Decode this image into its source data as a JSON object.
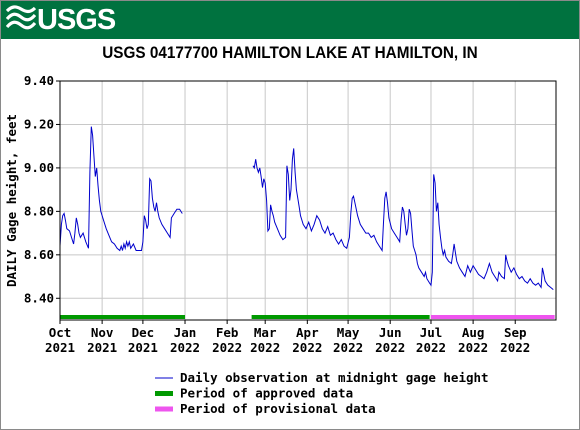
{
  "header": {
    "logo_text": "USGS",
    "logo_icon": "usgs-wave-icon",
    "banner_color": "#00723f"
  },
  "chart_data": {
    "type": "line",
    "title": "USGS 04177700 HAMILTON LAKE AT HAMILTON, IN",
    "ylabel": "DAILY Gage height, feet",
    "xlabel": "",
    "ylim": [
      8.3,
      9.4
    ],
    "yticks": [
      "8.40",
      "8.60",
      "8.80",
      "9.00",
      "9.20",
      "9.40"
    ],
    "xlim": [
      "2021-10-01",
      "2022-09-30"
    ],
    "xticks": [
      {
        "date": "2021-10-01",
        "line1": "Oct",
        "line2": "2021"
      },
      {
        "date": "2021-11-01",
        "line1": "Nov",
        "line2": "2021"
      },
      {
        "date": "2021-12-01",
        "line1": "Dec",
        "line2": "2021"
      },
      {
        "date": "2022-01-01",
        "line1": "Jan",
        "line2": "2022"
      },
      {
        "date": "2022-02-01",
        "line1": "Feb",
        "line2": "2022"
      },
      {
        "date": "2022-03-01",
        "line1": "Mar",
        "line2": "2022"
      },
      {
        "date": "2022-04-01",
        "line1": "Apr",
        "line2": "2022"
      },
      {
        "date": "2022-05-01",
        "line1": "May",
        "line2": "2022"
      },
      {
        "date": "2022-06-01",
        "line1": "Jun",
        "line2": "2022"
      },
      {
        "date": "2022-07-01",
        "line1": "Jul",
        "line2": "2022"
      },
      {
        "date": "2022-08-01",
        "line1": "Aug",
        "line2": "2022"
      },
      {
        "date": "2022-09-01",
        "line1": "Sep",
        "line2": "2022"
      }
    ],
    "grid": true,
    "legend_position": "bottom",
    "series": [
      {
        "name": "Daily observation at midnight gage height",
        "color": "#0000cc",
        "segments": [
          [
            [
              "2021-10-01",
              8.64
            ],
            [
              "2021-10-02",
              8.74
            ],
            [
              "2021-10-03",
              8.78
            ],
            [
              "2021-10-04",
              8.79
            ],
            [
              "2021-10-05",
              8.76
            ],
            [
              "2021-10-06",
              8.72
            ],
            [
              "2021-10-08",
              8.71
            ],
            [
              "2021-10-10",
              8.67
            ],
            [
              "2021-10-11",
              8.65
            ],
            [
              "2021-10-12",
              8.7
            ],
            [
              "2021-10-13",
              8.77
            ],
            [
              "2021-10-14",
              8.74
            ],
            [
              "2021-10-15",
              8.7
            ],
            [
              "2021-10-16",
              8.68
            ],
            [
              "2021-10-18",
              8.7
            ],
            [
              "2021-10-20",
              8.66
            ],
            [
              "2021-10-22",
              8.63
            ],
            [
              "2021-10-23",
              8.98
            ],
            [
              "2021-10-24",
              9.19
            ],
            [
              "2021-10-25",
              9.15
            ],
            [
              "2021-10-26",
              9.05
            ],
            [
              "2021-10-27",
              8.96
            ],
            [
              "2021-10-28",
              9.0
            ],
            [
              "2021-10-29",
              8.92
            ],
            [
              "2021-10-30",
              8.85
            ],
            [
              "2021-10-31",
              8.8
            ],
            [
              "2021-11-02",
              8.76
            ],
            [
              "2021-11-04",
              8.72
            ],
            [
              "2021-11-06",
              8.69
            ],
            [
              "2021-11-08",
              8.66
            ],
            [
              "2021-11-10",
              8.65
            ],
            [
              "2021-11-12",
              8.63
            ],
            [
              "2021-11-14",
              8.62
            ],
            [
              "2021-11-15",
              8.64
            ],
            [
              "2021-11-16",
              8.62
            ],
            [
              "2021-11-17",
              8.65
            ],
            [
              "2021-11-18",
              8.63
            ],
            [
              "2021-11-19",
              8.66
            ],
            [
              "2021-11-20",
              8.64
            ],
            [
              "2021-11-21",
              8.66
            ],
            [
              "2021-11-22",
              8.63
            ],
            [
              "2021-11-24",
              8.65
            ],
            [
              "2021-11-26",
              8.62
            ],
            [
              "2021-11-28",
              8.62
            ],
            [
              "2021-11-30",
              8.62
            ],
            [
              "2021-12-01",
              8.66
            ],
            [
              "2021-12-02",
              8.78
            ],
            [
              "2021-12-03",
              8.76
            ],
            [
              "2021-12-04",
              8.72
            ],
            [
              "2021-12-05",
              8.74
            ],
            [
              "2021-12-06",
              8.95
            ],
            [
              "2021-12-07",
              8.94
            ],
            [
              "2021-12-08",
              8.86
            ],
            [
              "2021-12-09",
              8.82
            ],
            [
              "2021-12-10",
              8.8
            ],
            [
              "2021-12-11",
              8.84
            ],
            [
              "2021-12-12",
              8.8
            ],
            [
              "2021-12-13",
              8.77
            ],
            [
              "2021-12-15",
              8.74
            ],
            [
              "2021-12-17",
              8.72
            ],
            [
              "2021-12-19",
              8.7
            ],
            [
              "2021-12-21",
              8.68
            ],
            [
              "2021-12-22",
              8.77
            ],
            [
              "2021-12-24",
              8.79
            ],
            [
              "2021-12-26",
              8.81
            ],
            [
              "2021-12-28",
              8.81
            ],
            [
              "2021-12-29",
              8.8
            ],
            [
              "2021-12-30",
              8.79
            ]
          ],
          [
            [
              "2022-02-20",
              9.01
            ],
            [
              "2022-02-21",
              9.0
            ],
            [
              "2022-02-22",
              9.04
            ],
            [
              "2022-02-23",
              9.0
            ],
            [
              "2022-02-24",
              8.98
            ],
            [
              "2022-02-25",
              9.0
            ],
            [
              "2022-02-26",
              8.96
            ],
            [
              "2022-02-27",
              8.91
            ],
            [
              "2022-02-28",
              8.95
            ],
            [
              "2022-03-01",
              8.93
            ],
            [
              "2022-03-02",
              8.85
            ],
            [
              "2022-03-03",
              8.71
            ],
            [
              "2022-03-04",
              8.72
            ],
            [
              "2022-03-05",
              8.83
            ],
            [
              "2022-03-06",
              8.8
            ],
            [
              "2022-03-07",
              8.78
            ],
            [
              "2022-03-08",
              8.75
            ],
            [
              "2022-03-10",
              8.72
            ],
            [
              "2022-03-12",
              8.69
            ],
            [
              "2022-03-14",
              8.67
            ],
            [
              "2022-03-16",
              8.68
            ],
            [
              "2022-03-17",
              9.01
            ],
            [
              "2022-03-18",
              8.97
            ],
            [
              "2022-03-19",
              8.85
            ],
            [
              "2022-03-20",
              8.9
            ],
            [
              "2022-03-21",
              9.04
            ],
            [
              "2022-03-22",
              9.09
            ],
            [
              "2022-03-23",
              8.98
            ],
            [
              "2022-03-24",
              8.9
            ],
            [
              "2022-03-25",
              8.86
            ],
            [
              "2022-03-26",
              8.82
            ],
            [
              "2022-03-27",
              8.78
            ],
            [
              "2022-03-29",
              8.74
            ],
            [
              "2022-03-31",
              8.72
            ],
            [
              "2022-04-02",
              8.75
            ],
            [
              "2022-04-04",
              8.71
            ],
            [
              "2022-04-06",
              8.74
            ],
            [
              "2022-04-08",
              8.78
            ],
            [
              "2022-04-10",
              8.76
            ],
            [
              "2022-04-12",
              8.72
            ],
            [
              "2022-04-14",
              8.7
            ],
            [
              "2022-04-16",
              8.73
            ],
            [
              "2022-04-18",
              8.69
            ],
            [
              "2022-04-20",
              8.7
            ],
            [
              "2022-04-22",
              8.67
            ],
            [
              "2022-04-24",
              8.65
            ],
            [
              "2022-04-26",
              8.67
            ],
            [
              "2022-04-28",
              8.64
            ],
            [
              "2022-04-30",
              8.63
            ],
            [
              "2022-05-02",
              8.68
            ],
            [
              "2022-05-03",
              8.79
            ],
            [
              "2022-05-04",
              8.86
            ],
            [
              "2022-05-05",
              8.87
            ],
            [
              "2022-05-06",
              8.84
            ],
            [
              "2022-05-08",
              8.78
            ],
            [
              "2022-05-10",
              8.74
            ],
            [
              "2022-05-12",
              8.72
            ],
            [
              "2022-05-14",
              8.7
            ],
            [
              "2022-05-16",
              8.7
            ],
            [
              "2022-05-18",
              8.68
            ],
            [
              "2022-05-20",
              8.69
            ],
            [
              "2022-05-22",
              8.66
            ],
            [
              "2022-05-24",
              8.64
            ],
            [
              "2022-05-26",
              8.62
            ],
            [
              "2022-05-27",
              8.74
            ],
            [
              "2022-05-28",
              8.86
            ],
            [
              "2022-05-29",
              8.89
            ],
            [
              "2022-05-30",
              8.84
            ],
            [
              "2022-05-31",
              8.77
            ],
            [
              "2022-06-02",
              8.72
            ],
            [
              "2022-06-04",
              8.7
            ],
            [
              "2022-06-06",
              8.68
            ],
            [
              "2022-06-08",
              8.66
            ],
            [
              "2022-06-09",
              8.76
            ],
            [
              "2022-06-10",
              8.82
            ],
            [
              "2022-06-11",
              8.8
            ],
            [
              "2022-06-12",
              8.74
            ],
            [
              "2022-06-13",
              8.69
            ],
            [
              "2022-06-14",
              8.72
            ],
            [
              "2022-06-15",
              8.81
            ],
            [
              "2022-06-16",
              8.79
            ],
            [
              "2022-06-17",
              8.71
            ],
            [
              "2022-06-18",
              8.64
            ],
            [
              "2022-06-19",
              8.62
            ],
            [
              "2022-06-20",
              8.6
            ],
            [
              "2022-06-21",
              8.56
            ],
            [
              "2022-06-22",
              8.54
            ],
            [
              "2022-06-24",
              8.52
            ],
            [
              "2022-06-26",
              8.5
            ],
            [
              "2022-06-27",
              8.52
            ],
            [
              "2022-06-28",
              8.49
            ],
            [
              "2022-06-30",
              8.47
            ],
            [
              "2022-07-01",
              8.46
            ],
            [
              "2022-07-02",
              8.52
            ],
            [
              "2022-07-03",
              8.97
            ],
            [
              "2022-07-04",
              8.93
            ],
            [
              "2022-07-05",
              8.8
            ],
            [
              "2022-07-06",
              8.84
            ],
            [
              "2022-07-07",
              8.74
            ],
            [
              "2022-07-08",
              8.68
            ],
            [
              "2022-07-09",
              8.63
            ],
            [
              "2022-07-10",
              8.6
            ],
            [
              "2022-07-11",
              8.62
            ],
            [
              "2022-07-12",
              8.59
            ],
            [
              "2022-07-14",
              8.57
            ],
            [
              "2022-07-16",
              8.56
            ],
            [
              "2022-07-17",
              8.6
            ],
            [
              "2022-07-18",
              8.65
            ],
            [
              "2022-07-19",
              8.61
            ],
            [
              "2022-07-20",
              8.57
            ],
            [
              "2022-07-22",
              8.54
            ],
            [
              "2022-07-24",
              8.52
            ],
            [
              "2022-07-26",
              8.5
            ],
            [
              "2022-07-28",
              8.55
            ],
            [
              "2022-07-30",
              8.52
            ],
            [
              "2022-08-01",
              8.55
            ],
            [
              "2022-08-03",
              8.53
            ],
            [
              "2022-08-05",
              8.51
            ],
            [
              "2022-08-07",
              8.5
            ],
            [
              "2022-08-09",
              8.49
            ],
            [
              "2022-08-11",
              8.52
            ],
            [
              "2022-08-13",
              8.56
            ],
            [
              "2022-08-15",
              8.52
            ],
            [
              "2022-08-17",
              8.5
            ],
            [
              "2022-08-19",
              8.48
            ],
            [
              "2022-08-20",
              8.52
            ],
            [
              "2022-08-22",
              8.5
            ],
            [
              "2022-08-24",
              8.49
            ],
            [
              "2022-08-25",
              8.6
            ],
            [
              "2022-08-26",
              8.57
            ],
            [
              "2022-08-27",
              8.55
            ],
            [
              "2022-08-29",
              8.52
            ],
            [
              "2022-08-31",
              8.54
            ],
            [
              "2022-09-02",
              8.51
            ],
            [
              "2022-09-04",
              8.49
            ],
            [
              "2022-09-06",
              8.5
            ],
            [
              "2022-09-08",
              8.48
            ],
            [
              "2022-09-10",
              8.47
            ],
            [
              "2022-09-12",
              8.49
            ],
            [
              "2022-09-14",
              8.47
            ],
            [
              "2022-09-16",
              8.46
            ],
            [
              "2022-09-18",
              8.47
            ],
            [
              "2022-09-20",
              8.45
            ],
            [
              "2022-09-21",
              8.54
            ],
            [
              "2022-09-22",
              8.51
            ],
            [
              "2022-09-23",
              8.48
            ],
            [
              "2022-09-25",
              8.46
            ],
            [
              "2022-09-27",
              8.45
            ],
            [
              "2022-09-29",
              8.44
            ]
          ]
        ]
      }
    ],
    "periods": [
      {
        "name": "Period of approved data",
        "color": "#009900",
        "ranges": [
          [
            "2021-10-01",
            "2022-01-01"
          ],
          [
            "2022-02-19",
            "2022-06-30"
          ]
        ]
      },
      {
        "name": "Period of provisional data",
        "color": "#ee55ee",
        "ranges": [
          [
            "2022-07-01",
            "2022-09-30"
          ]
        ]
      }
    ]
  }
}
